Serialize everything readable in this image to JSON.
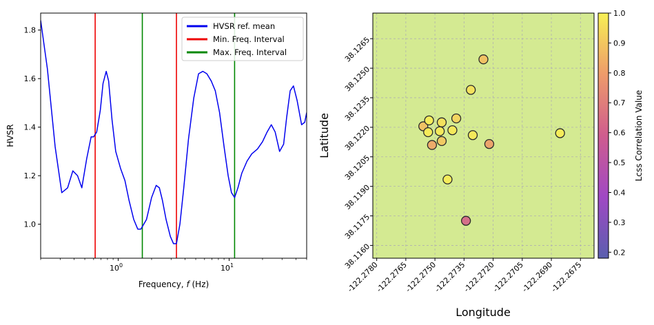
{
  "chart_data": [
    {
      "type": "line",
      "xlabel": "Frequency, f (Hz)",
      "xlabel_main": "Frequency, ",
      "xlabel_var": "f",
      "xlabel_unit": " (Hz)",
      "ylabel": "HVSR",
      "xscale": "log",
      "xlim": [
        0.2,
        50
      ],
      "ylim": [
        0.86,
        1.87
      ],
      "yticks": [
        1.0,
        1.2,
        1.4,
        1.6,
        1.8
      ],
      "ytick_labels": [
        "1.0",
        "1.2",
        "1.4",
        "1.6",
        "1.8"
      ],
      "xticks": [
        1,
        10
      ],
      "xtick_labels": [
        {
          "base": "10",
          "exp": "0"
        },
        {
          "base": "10",
          "exp": "1"
        }
      ],
      "grid": false,
      "legend_position": "top-right",
      "series": [
        {
          "name": "HVSR ref. mean",
          "color": "#0000ee",
          "x": [
            0.2,
            0.23,
            0.27,
            0.31,
            0.35,
            0.39,
            0.43,
            0.47,
            0.52,
            0.57,
            0.6,
            0.64,
            0.69,
            0.73,
            0.78,
            0.82,
            0.88,
            0.95,
            1.05,
            1.15,
            1.25,
            1.38,
            1.5,
            1.6,
            1.7,
            1.8,
            2.0,
            2.2,
            2.35,
            2.5,
            2.7,
            2.95,
            3.15,
            3.35,
            3.6,
            3.9,
            4.3,
            4.8,
            5.3,
            5.8,
            6.3,
            6.9,
            7.5,
            8.2,
            9.0,
            9.8,
            10.5,
            11.2,
            12.0,
            13.0,
            14.5,
            16.0,
            18.0,
            20.0,
            22.0,
            24.0,
            26.0,
            28.5,
            31.0,
            33.0,
            35.5,
            38.0,
            41.0,
            45.0,
            48.0,
            50.0
          ],
          "y": [
            1.84,
            1.64,
            1.32,
            1.13,
            1.15,
            1.22,
            1.2,
            1.15,
            1.27,
            1.36,
            1.36,
            1.38,
            1.47,
            1.58,
            1.63,
            1.59,
            1.43,
            1.3,
            1.23,
            1.18,
            1.1,
            1.02,
            0.98,
            0.98,
            1.0,
            1.02,
            1.11,
            1.16,
            1.15,
            1.1,
            1.02,
            0.95,
            0.92,
            0.92,
            1.0,
            1.15,
            1.35,
            1.52,
            1.62,
            1.63,
            1.62,
            1.59,
            1.55,
            1.46,
            1.32,
            1.2,
            1.13,
            1.11,
            1.15,
            1.21,
            1.26,
            1.29,
            1.31,
            1.34,
            1.38,
            1.41,
            1.38,
            1.3,
            1.33,
            1.44,
            1.55,
            1.57,
            1.51,
            1.41,
            1.42,
            1.46
          ]
        },
        {
          "name": "Min. Freq. Interval",
          "color": "#ee0000",
          "vlines": [
            0.62,
            3.35
          ]
        },
        {
          "name": "Max. Freq. Interval",
          "color": "#008800",
          "vlines": [
            1.65,
            11.2
          ]
        }
      ]
    },
    {
      "type": "scatter",
      "xlabel": "Longitude",
      "ylabel": "Latitude",
      "xlim": [
        -122.2782,
        -122.2668
      ],
      "ylim": [
        38.11535,
        38.1278
      ],
      "xticks": [
        -122.278,
        -122.2765,
        -122.275,
        -122.2735,
        -122.272,
        -122.2705,
        -122.269,
        -122.2675
      ],
      "xtick_labels": [
        "-122.2780",
        "-122.2765",
        "-122.2750",
        "-122.2735",
        "-122.2720",
        "-122.2705",
        "-122.2690",
        "-122.2675"
      ],
      "yticks": [
        38.116,
        38.1175,
        38.119,
        38.1205,
        38.122,
        38.1235,
        38.125,
        38.1265
      ],
      "ytick_labels": [
        "38.1160",
        "38.1175",
        "38.1190",
        "38.1205",
        "38.1220",
        "38.1235",
        "38.1250",
        "38.1265"
      ],
      "grid": true,
      "background_color": "#d4ea92",
      "colorbar": {
        "label": "Lcss Correlation Value",
        "range": [
          0.18,
          1.0
        ],
        "ticks": [
          0.2,
          0.3,
          0.4,
          0.5,
          0.6,
          0.7,
          0.8,
          0.9,
          1.0
        ],
        "tick_labels": [
          "0.2",
          "0.3",
          "0.4",
          "0.5",
          "0.6",
          "0.7",
          "0.8",
          "0.9",
          "1.0"
        ]
      },
      "points": [
        {
          "lon": -122.2756,
          "lat": 38.12205,
          "c": 0.88
        },
        {
          "lon": -122.2753,
          "lat": 38.12235,
          "c": 0.99
        },
        {
          "lon": -122.27535,
          "lat": 38.12175,
          "c": 0.99
        },
        {
          "lon": -122.27515,
          "lat": 38.1211,
          "c": 0.82
        },
        {
          "lon": -122.27475,
          "lat": 38.1218,
          "c": 0.98
        },
        {
          "lon": -122.27465,
          "lat": 38.12225,
          "c": 0.96
        },
        {
          "lon": -122.27465,
          "lat": 38.1213,
          "c": 0.9
        },
        {
          "lon": -122.27435,
          "lat": 38.11935,
          "c": 0.99
        },
        {
          "lon": -122.2741,
          "lat": 38.12185,
          "c": 0.98
        },
        {
          "lon": -122.2739,
          "lat": 38.12245,
          "c": 0.93
        },
        {
          "lon": -122.2734,
          "lat": 38.11725,
          "c": 0.62
        },
        {
          "lon": -122.27315,
          "lat": 38.1239,
          "c": 0.96
        },
        {
          "lon": -122.27305,
          "lat": 38.1216,
          "c": 0.98
        },
        {
          "lon": -122.2725,
          "lat": 38.12545,
          "c": 0.88
        },
        {
          "lon": -122.2722,
          "lat": 38.12115,
          "c": 0.8
        },
        {
          "lon": -122.26855,
          "lat": 38.1217,
          "c": 0.99
        }
      ]
    }
  ]
}
